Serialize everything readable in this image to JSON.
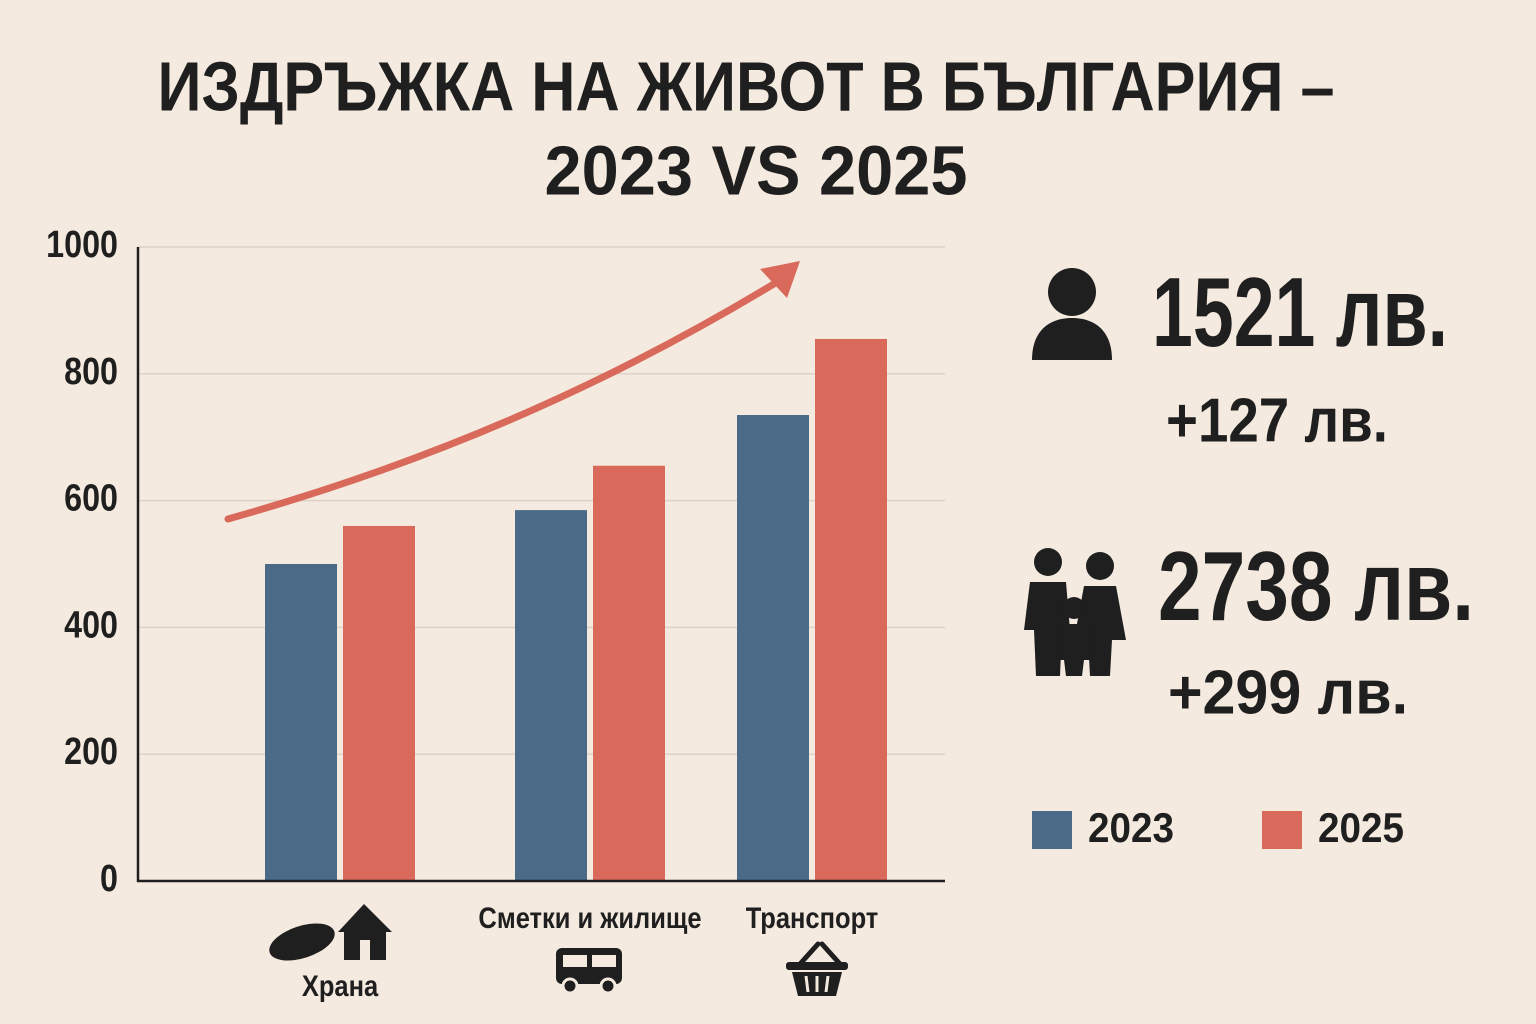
{
  "chart_data": {
    "type": "bar",
    "title": [
      "ИЗДРЪЖКА НА ЖИВОТ В БЪЛГАРИЯ –",
      "2023 VS 2025"
    ],
    "categories": [
      "Храна",
      "Сметки и жилище",
      "Транспорт"
    ],
    "series": [
      {
        "name": "2023",
        "color": "#4a6a88",
        "values": [
          500,
          585,
          735
        ]
      },
      {
        "name": "2025",
        "color": "#d9695a",
        "values": [
          560,
          655,
          855
        ]
      }
    ],
    "ylim": [
      0,
      1000
    ],
    "yticks": [
      0,
      200,
      400,
      600,
      800,
      1000
    ],
    "grid": true,
    "stats": [
      {
        "value": "1521 лв.",
        "change": "+127 лв."
      },
      {
        "value": "2738 лв.",
        "change": "+299 лв."
      }
    ]
  }
}
